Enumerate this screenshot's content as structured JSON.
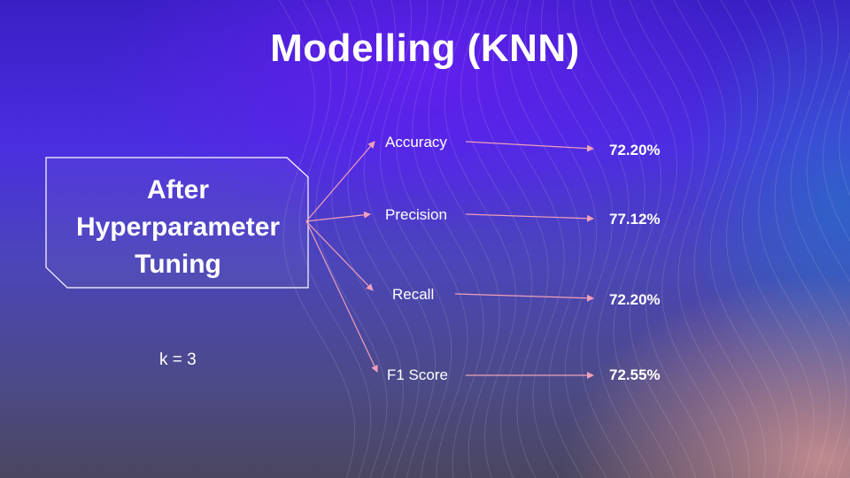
{
  "slide": {
    "title": "Modelling (KNN)",
    "box_line1": "After",
    "box_line2": "Hyperparameter",
    "box_line3": "Tuning",
    "k_label": "k = 3"
  },
  "metrics": [
    {
      "label": "Accuracy",
      "value": "72.20%"
    },
    {
      "label": "Precision",
      "value": "77.12%"
    },
    {
      "label": "Recall",
      "value": "72.20%"
    },
    {
      "label": "F1 Score",
      "value": "72.55%"
    }
  ],
  "colors": {
    "arrow": "#f0a0b8",
    "box_border": "#ffffff",
    "text": "#ffffff"
  }
}
